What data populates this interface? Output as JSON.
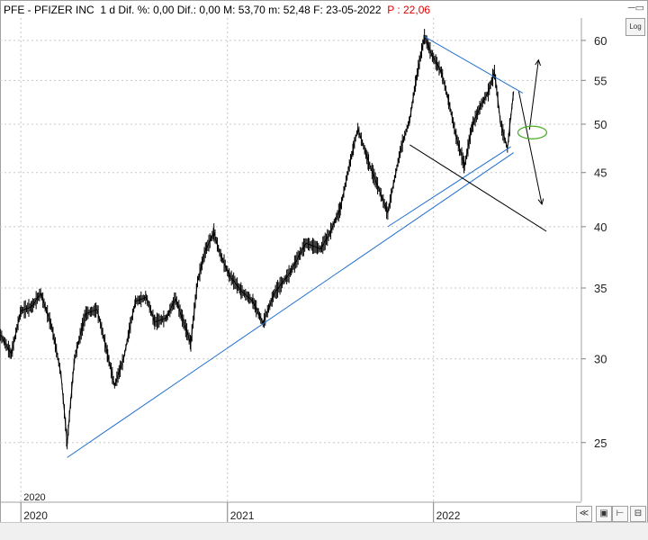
{
  "header": {
    "symbol": "PFE",
    "name": "PFIZER INC",
    "interval": "1 d",
    "stats": "Dif. %: 0,00  Dif.: 0,00  M: 53,70  m: 52,48  F: 23-05-2022",
    "perf": "P : 22,06"
  },
  "buttons": {
    "log": "Log"
  },
  "icons": [
    "window-controls-icon",
    "collapse-icon",
    "save-icon",
    "expand-icon",
    "minimize-icon"
  ],
  "colors": {
    "price": "#000000",
    "trendline": "#1f6fd0",
    "ellipse": "#4caf28",
    "perf": "#e00000"
  },
  "chart_data": {
    "type": "line",
    "title": "PFE - PFIZER INC",
    "y_scale": "log",
    "ylim": [
      22,
      63
    ],
    "y_ticks": [
      25,
      30,
      35,
      40,
      45,
      50,
      55,
      60
    ],
    "x_range": [
      "2019-11-25",
      "2022-09-20"
    ],
    "x_ticks": [
      "2020",
      "2021",
      "2022"
    ],
    "top_year_marker": "2020",
    "series": [
      {
        "points": [
          [
            "2019-11-26",
            31.6
          ],
          [
            "2019-12-15",
            30.3
          ],
          [
            "2020-01-01",
            33.3
          ],
          [
            "2020-01-20",
            33.6
          ],
          [
            "2020-02-05",
            34.6
          ],
          [
            "2020-02-25",
            32.1
          ],
          [
            "2020-03-12",
            29.0
          ],
          [
            "2020-03-23",
            24.9
          ],
          [
            "2020-04-05",
            30.0
          ],
          [
            "2020-04-25",
            33.1
          ],
          [
            "2020-05-15",
            33.4
          ],
          [
            "2020-06-03",
            30.2
          ],
          [
            "2020-06-15",
            28.3
          ],
          [
            "2020-07-01",
            30.0
          ],
          [
            "2020-07-22",
            34.0
          ],
          [
            "2020-08-10",
            34.3
          ],
          [
            "2020-08-25",
            32.5
          ],
          [
            "2020-09-15",
            32.8
          ],
          [
            "2020-10-01",
            34.2
          ],
          [
            "2020-10-28",
            31.0
          ],
          [
            "2020-11-09",
            35.5
          ],
          [
            "2020-11-23",
            38.0
          ],
          [
            "2020-12-08",
            39.5
          ],
          [
            "2020-12-18",
            37.8
          ],
          [
            "2021-01-04",
            36.0
          ],
          [
            "2021-01-25",
            34.8
          ],
          [
            "2021-02-15",
            34.0
          ],
          [
            "2021-03-05",
            32.4
          ],
          [
            "2021-03-25",
            34.6
          ],
          [
            "2021-04-22",
            36.2
          ],
          [
            "2021-05-20",
            38.6
          ],
          [
            "2021-06-15",
            38.1
          ],
          [
            "2021-07-01",
            39.4
          ],
          [
            "2021-07-20",
            41.6
          ],
          [
            "2021-08-12",
            47.5
          ],
          [
            "2021-08-20",
            49.5
          ],
          [
            "2021-09-08",
            46.0
          ],
          [
            "2021-10-04",
            42.3
          ],
          [
            "2021-10-12",
            41.2
          ],
          [
            "2021-11-05",
            47.6
          ],
          [
            "2021-11-20",
            50.5
          ],
          [
            "2021-12-01",
            55.0
          ],
          [
            "2021-12-16",
            60.5
          ],
          [
            "2021-12-30",
            58.0
          ],
          [
            "2022-01-15",
            56.0
          ],
          [
            "2022-01-28",
            52.5
          ],
          [
            "2022-02-10",
            48.7
          ],
          [
            "2022-02-25",
            45.6
          ],
          [
            "2022-03-10",
            49.7
          ],
          [
            "2022-03-25",
            52.0
          ],
          [
            "2022-04-08",
            53.6
          ],
          [
            "2022-04-19",
            56.0
          ],
          [
            "2022-04-30",
            50.0
          ],
          [
            "2022-05-12",
            47.4
          ],
          [
            "2022-05-23",
            53.7
          ]
        ]
      }
    ],
    "annotations": [
      {
        "kind": "trendline",
        "color": "#1f6fd0",
        "from": [
          "2020-03-23",
          24.2
        ],
        "to": [
          "2022-05-23",
          47.0
        ]
      },
      {
        "kind": "trendline",
        "color": "#1f6fd0",
        "from": [
          "2021-10-12",
          40.0
        ],
        "to": [
          "2022-05-18",
          47.6
        ]
      },
      {
        "kind": "trendline",
        "color": "#1f6fd0",
        "from": [
          "2021-12-16",
          60.5
        ],
        "to": [
          "2022-06-08",
          53.5
        ]
      },
      {
        "kind": "line",
        "color": "#000000",
        "from": [
          "2021-11-20",
          47.8
        ],
        "to": [
          "2022-07-20",
          39.6
        ]
      },
      {
        "kind": "arrow",
        "color": "#000000",
        "from": [
          "2022-06-20",
          49.4
        ],
        "to": [
          "2022-07-06",
          57.5
        ]
      },
      {
        "kind": "arrow",
        "color": "#000000",
        "from": [
          "2022-06-01",
          53.7
        ],
        "to": [
          "2022-07-12",
          42.0
        ]
      },
      {
        "kind": "ellipse",
        "color": "#4caf28",
        "center": [
          "2022-06-25",
          49.1
        ]
      }
    ]
  }
}
